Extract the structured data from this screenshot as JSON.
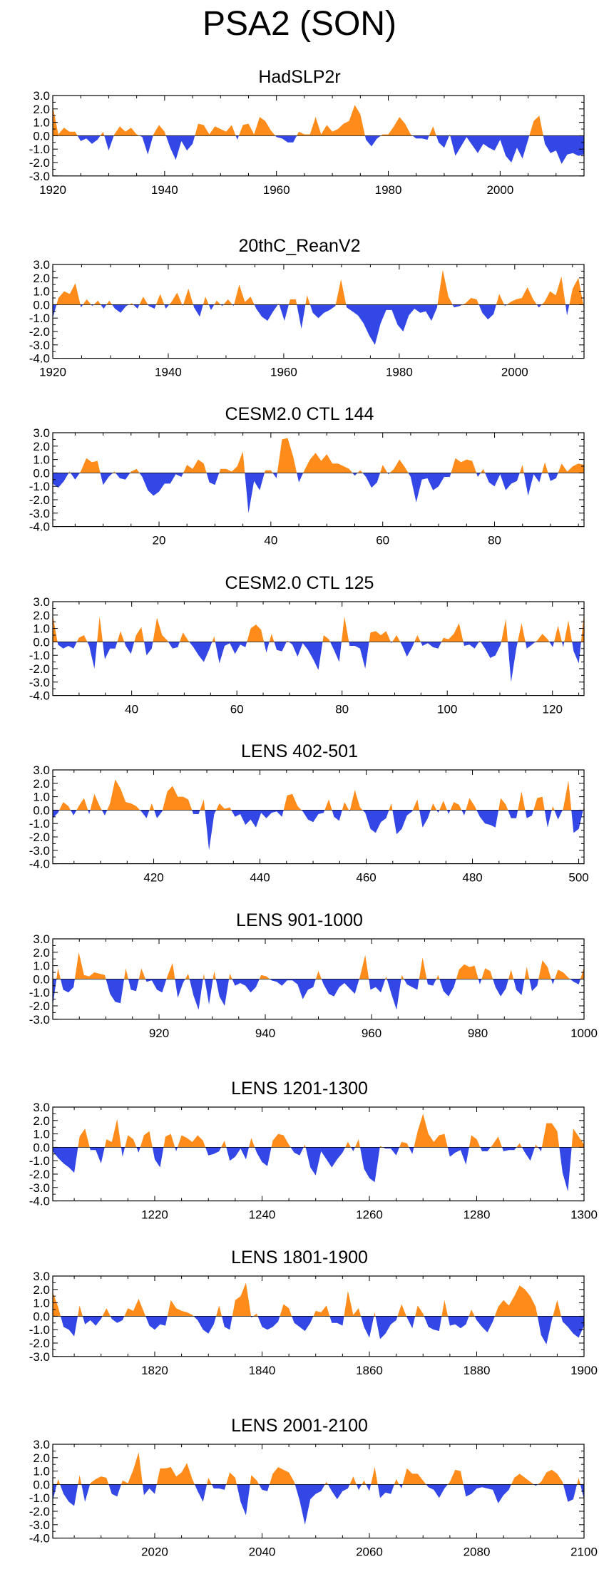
{
  "title": "PSA2 (SON)",
  "colors": {
    "positive": "#ff8c1a",
    "negative": "#3346e6",
    "axis": "#000000"
  },
  "chart_data": [
    {
      "type": "area",
      "title": "HadSLP2r",
      "xlabel": "",
      "ylabel": "",
      "xlim": [
        1920,
        2015
      ],
      "ylim": [
        -3.0,
        3.0
      ],
      "yticks": [
        "3.0",
        "2.0",
        "1.0",
        "0.0",
        "-1.0",
        "-2.0",
        "-3.0"
      ],
      "xticks": [
        1920,
        1940,
        1960,
        1980,
        2000
      ],
      "xtick_labels": [
        "1920",
        "1940",
        "1960",
        "1980",
        "2000"
      ],
      "values": [
        2.2,
        0.1,
        0.6,
        0.3,
        0.3,
        -0.4,
        -0.2,
        -0.6,
        -0.3,
        0.3,
        -1.1,
        0.1,
        0.7,
        0.3,
        0.6,
        0.1,
        -0.1,
        -1.4,
        0.1,
        0.8,
        0.3,
        -0.9,
        -1.8,
        -0.4,
        -1.1,
        -0.6,
        0.9,
        0.8,
        0.1,
        0.7,
        0.5,
        0.3,
        0.8,
        -0.3,
        0.8,
        0.9,
        0.1,
        1.4,
        1.1,
        0.4,
        -0.1,
        -0.2,
        -0.5,
        -0.5,
        0.3,
        0.1,
        0.1,
        1.4,
        0.1,
        0.8,
        0.3,
        0.5,
        0.9,
        1.1,
        2.3,
        1.6,
        -0.3,
        -0.8,
        -0.2,
        0.1,
        0.1,
        0.7,
        1.4,
        0.9,
        0.1,
        -0.2,
        -0.2,
        -0.3,
        0.7,
        -0.5,
        -0.9,
        0.1,
        -1.5,
        -0.8,
        -0.1,
        -0.7,
        -1.3,
        -0.6,
        -0.9,
        -1.1,
        -0.3,
        -1.5,
        -2.0,
        -0.9,
        -1.7,
        -0.3,
        1.1,
        1.5,
        -0.6,
        -1.3,
        -1.1,
        -2.1,
        -1.4,
        -1.3,
        -1.5,
        -1.4
      ]
    },
    {
      "type": "area",
      "title": "20thC_ReanV2",
      "xlabel": "",
      "ylabel": "",
      "xlim": [
        1920,
        2012
      ],
      "ylim": [
        -4.0,
        3.0
      ],
      "yticks": [
        "3.0",
        "2.0",
        "1.0",
        "0.0",
        "-1.0",
        "-2.0",
        "-3.0",
        "-4.0"
      ],
      "xticks": [
        1920,
        1940,
        1960,
        1980,
        2000
      ],
      "xtick_labels": [
        "1920",
        "1940",
        "1960",
        "1980",
        "2000"
      ],
      "values": [
        -1.0,
        0.5,
        1.0,
        0.8,
        1.6,
        -0.2,
        0.4,
        -0.1,
        0.3,
        -0.3,
        0.3,
        -0.3,
        -0.6,
        -0.1,
        0.1,
        -0.3,
        0.6,
        -0.1,
        -0.3,
        0.8,
        -0.3,
        0.2,
        0.9,
        -0.1,
        1.2,
        -0.2,
        -0.9,
        0.6,
        -0.4,
        0.3,
        -0.1,
        0.4,
        -0.1,
        1.5,
        0.2,
        0.6,
        -0.3,
        -0.9,
        -1.2,
        -0.5,
        0.1,
        -1.2,
        0.4,
        0.4,
        -1.8,
        0.7,
        -0.6,
        -1.0,
        -0.6,
        -0.4,
        -0.1,
        1.9,
        -0.2,
        -0.5,
        -0.8,
        -1.4,
        -2.3,
        -3.0,
        -1.4,
        -0.4,
        -0.4,
        -1.5,
        -2.0,
        -0.8,
        -0.3,
        -0.6,
        -0.5,
        -1.2,
        -0.2,
        2.6,
        0.6,
        -0.2,
        -0.1,
        0.1,
        0.5,
        0.4,
        -0.6,
        -1.1,
        -0.7,
        0.8,
        -0.1,
        0.2,
        0.4,
        0.5,
        1.3,
        0.4,
        -0.2,
        0.2,
        1.0,
        0.7,
        2.1,
        -0.8,
        1.2,
        2.0,
        -0.3
      ]
    },
    {
      "type": "area",
      "title": "CESM2.0 CTL 144",
      "xlabel": "",
      "ylabel": "",
      "xlim": [
        1,
        96
      ],
      "ylim": [
        -4.0,
        3.0
      ],
      "yticks": [
        "3.0",
        "2.0",
        "1.0",
        "0.0",
        "-1.0",
        "-2.0",
        "-3.0",
        "-4.0"
      ],
      "xticks": [
        20,
        40,
        60,
        80
      ],
      "xtick_labels": [
        "20",
        "40",
        "60",
        "80"
      ],
      "values": [
        -0.8,
        -1.1,
        -0.6,
        0.1,
        -0.5,
        0.1,
        1.1,
        0.8,
        0.9,
        -0.9,
        -0.3,
        0.1,
        -0.4,
        -0.5,
        0.1,
        0.3,
        -0.3,
        -1.3,
        -1.7,
        -1.4,
        -0.8,
        -0.8,
        -0.1,
        -0.3,
        0.6,
        0.3,
        1.0,
        0.7,
        -0.7,
        -0.9,
        0.3,
        0.3,
        0.1,
        0.5,
        1.6,
        -3.0,
        -0.6,
        -1.3,
        0.2,
        0.2,
        -0.4,
        2.5,
        2.6,
        1.2,
        -0.7,
        0.2,
        1.0,
        1.5,
        0.9,
        1.4,
        0.7,
        0.7,
        0.5,
        0.3,
        -0.2,
        0.2,
        -0.3,
        -1.1,
        -0.7,
        0.6,
        -0.1,
        0.3,
        1.0,
        0.4,
        -0.3,
        -2.2,
        -0.5,
        -0.4,
        -1.3,
        -1.0,
        -0.3,
        -0.3,
        1.1,
        0.8,
        1.0,
        0.9,
        -0.3,
        0.3,
        -0.7,
        -1.0,
        -0.1,
        -1.3,
        -0.8,
        -0.6,
        0.6,
        -1.7,
        -0.1,
        -0.7,
        0.8,
        -0.6,
        -0.4,
        0.7,
        0.1,
        0.5,
        0.7,
        0.6
      ]
    },
    {
      "type": "area",
      "title": "CESM2.0 CTL 125",
      "xlabel": "",
      "ylabel": "",
      "xlim": [
        25,
        126
      ],
      "ylim": [
        -4.0,
        3.0
      ],
      "yticks": [
        "3.0",
        "2.0",
        "1.0",
        "0.0",
        "-1.0",
        "-2.0",
        "-3.0",
        "-4.0"
      ],
      "xticks": [
        40,
        60,
        80,
        100,
        120
      ],
      "xtick_labels": [
        "40",
        "60",
        "80",
        "100",
        "120"
      ],
      "values": [
        2.0,
        -0.2,
        -0.5,
        -0.3,
        -0.5,
        0.3,
        0.5,
        -0.3,
        -2.0,
        1.9,
        -1.3,
        -0.5,
        -0.5,
        0.8,
        -0.3,
        -0.9,
        0.5,
        1.1,
        -1.0,
        -0.5,
        1.8,
        0.5,
        0.1,
        -0.5,
        -0.4,
        0.7,
        0.1,
        -0.4,
        -1.0,
        -1.5,
        -0.6,
        0.4,
        -1.6,
        -0.3,
        -0.1,
        -0.9,
        -0.2,
        -0.4,
        1.0,
        1.3,
        0.9,
        -0.8,
        0.6,
        -0.6,
        -0.7,
        0.1,
        -0.2,
        -1.1,
        -0.1,
        -0.6,
        -1.3,
        -2.1,
        0.5,
        0.2,
        -0.6,
        -1.5,
        1.9,
        -0.3,
        -0.3,
        -0.5,
        -2.0,
        0.7,
        0.8,
        0.5,
        0.8,
        -0.1,
        0.5,
        -0.2,
        -1.1,
        -0.4,
        0.5,
        -0.3,
        -0.1,
        -0.4,
        -0.5,
        0.3,
        0.2,
        0.6,
        1.4,
        -0.3,
        -0.2,
        -0.5,
        0.1,
        -0.5,
        -1.2,
        -1.0,
        -0.2,
        1.7,
        -3.0,
        -0.5,
        1.4,
        -0.5,
        -0.2,
        0.1,
        0.6,
        0.2,
        -0.4,
        1.2,
        -0.4,
        1.6,
        -0.7,
        -1.6,
        2.1
      ]
    },
    {
      "type": "area",
      "title": "LENS 402-501",
      "xlabel": "",
      "ylabel": "",
      "xlim": [
        401,
        501
      ],
      "ylim": [
        -4.0,
        3.0
      ],
      "yticks": [
        "3.0",
        "2.0",
        "1.0",
        "0.0",
        "-1.0",
        "-2.0",
        "-3.0",
        "-4.0"
      ],
      "xticks": [
        420,
        440,
        460,
        480,
        500
      ],
      "xtick_labels": [
        "420",
        "440",
        "460",
        "480",
        "500"
      ],
      "values": [
        -0.6,
        -0.2,
        0.6,
        0.3,
        -0.4,
        0.3,
        0.9,
        -0.3,
        1.2,
        0.3,
        -0.4,
        0.5,
        2.3,
        1.6,
        0.6,
        0.5,
        0.3,
        -0.1,
        -0.6,
        0.5,
        -0.6,
        -0.1,
        1.4,
        1.8,
        1.0,
        1.0,
        0.8,
        -0.3,
        -0.3,
        0.8,
        -3.0,
        -0.3,
        0.5,
        0.1,
        0.2,
        -0.5,
        -0.3,
        -1.1,
        -0.7,
        -1.3,
        -0.2,
        -0.6,
        -0.2,
        -0.1,
        -0.5,
        1.1,
        1.2,
        0.3,
        -0.1,
        -0.7,
        -0.9,
        -0.3,
        -0.2,
        0.8,
        -0.5,
        -0.8,
        0.6,
        -0.1,
        1.5,
        0.2,
        -0.2,
        -1.4,
        -1.7,
        -0.9,
        -0.6,
        0.5,
        -1.8,
        -1.4,
        -0.4,
        -0.1,
        0.8,
        -1.3,
        -0.6,
        0.5,
        -0.2,
        0.7,
        -0.3,
        0.6,
        0.4,
        -0.4,
        0.9,
        0.3,
        -0.5,
        -1.0,
        -1.1,
        -1.3,
        0.9,
        0.4,
        -0.6,
        -0.6,
        1.4,
        -0.6,
        -0.4,
        0.9,
        1.0,
        -1.3,
        0.3,
        -0.7,
        0.1,
        2.2,
        -1.7,
        -1.4,
        0.3
      ]
    },
    {
      "type": "area",
      "title": "LENS 901-1000",
      "xlabel": "",
      "ylabel": "",
      "xlim": [
        900,
        1000
      ],
      "ylim": [
        -3.0,
        3.0
      ],
      "yticks": [
        "3.0",
        "2.0",
        "1.0",
        "0.0",
        "-1.0",
        "-2.0",
        "-3.0"
      ],
      "xticks": [
        920,
        940,
        960,
        980,
        1000
      ],
      "xtick_labels": [
        "920",
        "940",
        "960",
        "980",
        "1000"
      ],
      "values": [
        -2.0,
        0.8,
        -0.8,
        -1.0,
        -0.6,
        2.0,
        0.3,
        0.2,
        0.5,
        0.4,
        0.3,
        -1.1,
        -1.7,
        -1.8,
        0.8,
        -0.8,
        -0.9,
        0.8,
        -0.2,
        -0.1,
        -0.8,
        -1.0,
        0.2,
        1.2,
        -1.4,
        -0.3,
        0.4,
        -1.2,
        -2.3,
        0.4,
        -1.9,
        0.6,
        -1.3,
        -2.0,
        0.4,
        -0.5,
        -0.3,
        -0.5,
        -1.0,
        -0.6,
        0.3,
        0.2,
        -0.1,
        -0.2,
        -0.5,
        -0.1,
        -0.1,
        -0.4,
        -1.5,
        -0.8,
        -0.6,
        0.6,
        -0.4,
        -1.1,
        -1.3,
        -0.6,
        -0.3,
        -0.7,
        -1.1,
        0.2,
        1.8,
        -0.8,
        -0.6,
        -1.0,
        0.2,
        -1.1,
        -2.3,
        0.3,
        -0.4,
        -0.6,
        -0.8,
        1.6,
        -0.4,
        -0.5,
        0.3,
        -0.9,
        -1.3,
        -0.6,
        0.7,
        1.1,
        0.9,
        1.0,
        -0.4,
        0.8,
        0.6,
        -0.6,
        -1.3,
        -0.7,
        0.7,
        -0.8,
        -1.2,
        0.9,
        -0.9,
        -0.5,
        1.4,
        0.9,
        -0.4,
        0.7,
        0.5,
        0.1,
        -0.2,
        -0.4,
        0.9
      ]
    },
    {
      "type": "area",
      "title": "LENS 1201-1300",
      "xlabel": "",
      "ylabel": "",
      "xlim": [
        1201,
        1300
      ],
      "ylim": [
        -4.0,
        3.0
      ],
      "yticks": [
        "3.0",
        "2.0",
        "1.0",
        "0.0",
        "-1.0",
        "-2.0",
        "-3.0",
        "-4.0"
      ],
      "xticks": [
        1220,
        1240,
        1260,
        1280,
        1300
      ],
      "xtick_labels": [
        "1220",
        "1240",
        "1260",
        "1280",
        "1300"
      ],
      "values": [
        -0.3,
        -0.8,
        -1.2,
        -1.5,
        -1.9,
        0.8,
        1.4,
        -0.2,
        -0.2,
        -1.2,
        0.6,
        0.4,
        2.1,
        -0.7,
        0.9,
        0.6,
        -0.4,
        0.9,
        1.2,
        -0.9,
        -1.5,
        0.8,
        1.0,
        -0.3,
        0.9,
        0.7,
        0.4,
        0.9,
        0.5,
        -0.6,
        -0.5,
        -0.3,
        0.5,
        -1.0,
        -0.7,
        -0.1,
        -0.9,
        0.7,
        -0.4,
        -1.1,
        -1.4,
        0.5,
        1.0,
        0.9,
        0.2,
        -0.4,
        -0.6,
        0.2,
        -1.5,
        -2.1,
        -0.3,
        -0.9,
        -1.5,
        -0.9,
        -0.4,
        0.4,
        -0.3,
        0.6,
        -1.6,
        -2.3,
        -2.6,
        0.1,
        -0.1,
        -0.1,
        -0.6,
        0.4,
        0.3,
        -0.5,
        1.2,
        2.5,
        1.0,
        0.4,
        0.9,
        1.0,
        -0.7,
        -0.4,
        -0.2,
        -1.3,
        0.9,
        0.6,
        -0.3,
        -0.3,
        0.2,
        0.8,
        -0.3,
        -0.2,
        -0.2,
        0.3,
        -0.4,
        -1.0,
        0.2,
        -0.3,
        1.8,
        1.8,
        1.2,
        -1.9,
        -3.3,
        1.4,
        0.8,
        0.2
      ]
    },
    {
      "type": "area",
      "title": "LENS 1801-1900",
      "xlabel": "",
      "ylabel": "",
      "xlim": [
        1801,
        1900
      ],
      "ylim": [
        -3.0,
        3.0
      ],
      "yticks": [
        "3.0",
        "2.0",
        "1.0",
        "0.0",
        "-1.0",
        "-2.0",
        "-3.0"
      ],
      "xticks": [
        1820,
        1840,
        1860,
        1880,
        1900
      ],
      "xtick_labels": [
        "1820",
        "1840",
        "1860",
        "1880",
        "1900"
      ],
      "values": [
        1.8,
        0.7,
        -0.8,
        -1.0,
        -1.5,
        0.8,
        -0.6,
        -0.3,
        -0.7,
        -0.2,
        0.6,
        -0.2,
        -0.5,
        -0.3,
        0.6,
        0.4,
        1.3,
        0.3,
        -0.7,
        -1.0,
        -0.6,
        -0.7,
        1.2,
        0.6,
        0.4,
        0.3,
        0.1,
        -0.3,
        -1.0,
        -1.3,
        -0.6,
        0.8,
        -0.8,
        -1.0,
        1.2,
        1.5,
        2.5,
        -0.1,
        0.2,
        -0.8,
        -1.0,
        -0.8,
        -0.4,
        0.9,
        0.6,
        -0.5,
        -0.8,
        -1.1,
        -0.5,
        0.4,
        0.3,
        0.8,
        -0.5,
        -0.5,
        -0.7,
        1.9,
        0.1,
        0.6,
        -0.8,
        -1.6,
        0.3,
        -1.7,
        -1.3,
        -0.6,
        -0.3,
        0.9,
        -0.1,
        -0.9,
        0.8,
        0.2,
        -0.8,
        -1.0,
        -1.1,
        1.2,
        -0.7,
        -0.6,
        -0.9,
        -0.6,
        0.5,
        -0.3,
        -0.8,
        -1.2,
        -0.4,
        0.7,
        1.2,
        0.8,
        1.5,
        2.3,
        2.0,
        1.5,
        0.7,
        -1.4,
        -2.1,
        -0.3,
        1.2,
        -0.4,
        -0.8,
        -1.3,
        -1.6,
        -0.7
      ]
    },
    {
      "type": "area",
      "title": "LENS 2001-2100",
      "xlabel": "",
      "ylabel": "",
      "xlim": [
        2001,
        2100
      ],
      "ylim": [
        -4.0,
        3.0
      ],
      "yticks": [
        "3.0",
        "2.0",
        "1.0",
        "0.0",
        "-1.0",
        "-2.0",
        "-3.0",
        "-4.0"
      ],
      "xticks": [
        2020,
        2040,
        2060,
        2080,
        2100
      ],
      "xtick_labels": [
        "2020",
        "2040",
        "2060",
        "2080",
        "2100"
      ],
      "values": [
        -1.2,
        0.4,
        -0.7,
        -1.3,
        -1.6,
        0.7,
        -1.3,
        0.1,
        0.4,
        0.6,
        0.5,
        -0.7,
        -0.9,
        0.3,
        0.1,
        1.1,
        2.4,
        -0.8,
        -0.3,
        -0.7,
        1.2,
        1.2,
        1.3,
        0.6,
        0.9,
        1.6,
        0.4,
        -0.5,
        -1.3,
        0.5,
        -0.3,
        -0.3,
        -0.4,
        0.9,
        0.5,
        -1.3,
        -2.3,
        0.7,
        0.3,
        -0.4,
        -0.5,
        0.8,
        1.3,
        1.1,
        0.9,
        0.2,
        -1.2,
        -3.0,
        -1.1,
        -0.7,
        -0.5,
        0.2,
        -0.5,
        -1.1,
        -0.5,
        -0.3,
        0.6,
        -0.4,
        0.3,
        -0.5,
        1.3,
        -1.0,
        -0.6,
        -0.7,
        0.4,
        -0.3,
        1.2,
        0.8,
        0.8,
        0.3,
        -0.2,
        -0.4,
        -1.0,
        -0.3,
        0.2,
        1.1,
        1.0,
        -0.9,
        -0.7,
        -0.3,
        -0.2,
        -0.3,
        -0.4,
        -1.4,
        -0.8,
        -0.4,
        0.5,
        0.8,
        0.5,
        0.2,
        -0.1,
        0.2,
        0.9,
        1.1,
        0.8,
        0.2,
        -1.3,
        -1.1,
        0.5,
        -1.1
      ]
    }
  ]
}
